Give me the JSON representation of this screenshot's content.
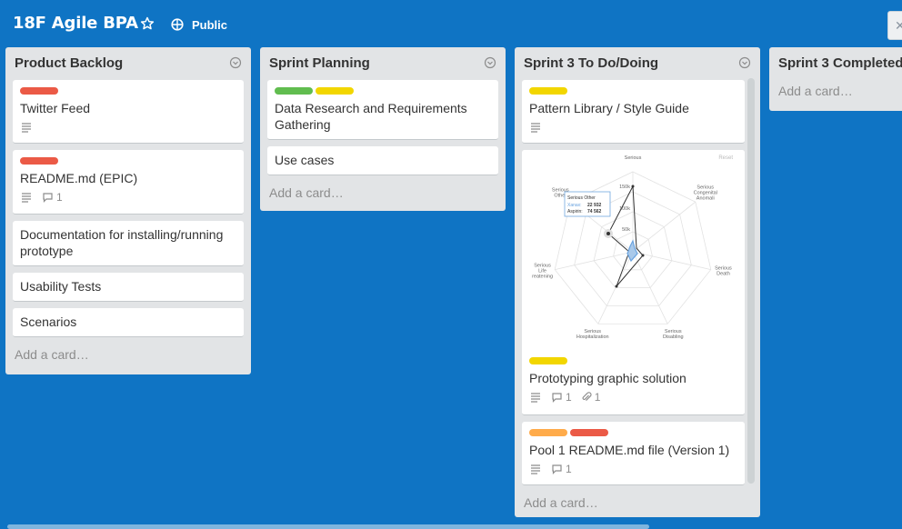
{
  "board": {
    "title": "18F Agile BPA",
    "visibility": "Public",
    "star_icon": "star-icon",
    "visibility_icon": "globe-icon",
    "background_color": "#0f74c4"
  },
  "lists": [
    {
      "title": "Product Backlog",
      "add_card": "Add a card…",
      "cards": [
        {
          "title": "Twitter Feed",
          "labels": [
            "#eb5a46"
          ],
          "description": true
        },
        {
          "title": "README.md (EPIC)",
          "labels": [
            "#eb5a46"
          ],
          "description": true,
          "comments": "1"
        },
        {
          "title": "Documentation for installing/running prototype"
        },
        {
          "title": "Usability Tests"
        },
        {
          "title": "Scenarios"
        }
      ]
    },
    {
      "title": "Sprint Planning",
      "add_card": "Add a card…",
      "cards": [
        {
          "title": "Data Research and Requirements Gathering",
          "labels": [
            "#61bd4f",
            "#f2d600"
          ]
        },
        {
          "title": "Use cases"
        }
      ]
    },
    {
      "title": "Sprint 3 To Do/Doing",
      "add_card": "Add a card…",
      "cards": [
        {
          "title": "Pattern Library / Style Guide",
          "labels": [
            "#f2d600"
          ],
          "description": true
        },
        {
          "title": "Prototyping graphic solution",
          "labels": [
            "#f2d600"
          ],
          "description": true,
          "comments": "1",
          "attachments": "1",
          "cover": {
            "axes": [
              "Serious",
              "Serious Congenital Anomali",
              "Serious Death",
              "Serious Disabling",
              "Serious Hospitalization",
              "Serious Life reatening",
              "Serious Other"
            ],
            "ticks": [
              "150k",
              "100k",
              "50k"
            ],
            "corner": "Reset",
            "tooltip": {
              "title": "Serious Other",
              "line1_name": "Xanax:",
              "line1_value": "22 932",
              "line2_name": "Aspirin:",
              "line2_value": "74 562"
            }
          }
        },
        {
          "title": "Pool 1 README.md file (Version 1)",
          "labels": [
            "#ffab4a",
            "#eb5a46"
          ],
          "description": true,
          "comments": "1"
        }
      ]
    },
    {
      "title": "Sprint 3 Completed",
      "add_card": "Add a card…",
      "cards": []
    }
  ]
}
